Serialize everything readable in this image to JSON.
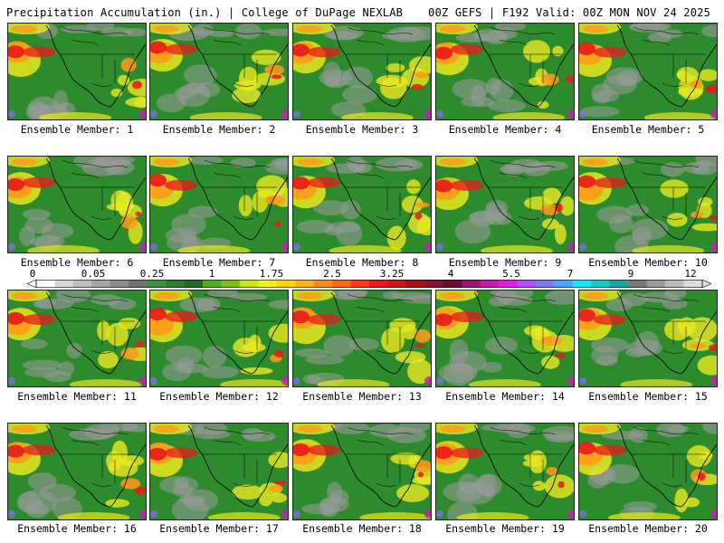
{
  "header": {
    "left": "Precipitation Accumulation (in.) | College of DuPage NEXLAB",
    "right": "00Z GEFS | F192 Valid: 00Z MON NOV 24 2025"
  },
  "legend": {
    "labels": [
      "0",
      "0.05",
      "0.25",
      "1",
      "1.75",
      "2.5",
      "3.25",
      "4",
      "5.5",
      "7",
      "9",
      "12"
    ],
    "colors": [
      "#ffffff",
      "#d9d9d9",
      "#bfbfbf",
      "#a6a6a6",
      "#8c8c8c",
      "#737373",
      "#3f8f3f",
      "#2e7d2e",
      "#1f6b1f",
      "#4caf1a",
      "#7cc21a",
      "#c8e61a",
      "#f0f020",
      "#ffd21a",
      "#ffb21a",
      "#ff8c1a",
      "#ff6a1a",
      "#ff3a1a",
      "#e61a1a",
      "#c8141a",
      "#a8101a",
      "#881030",
      "#6a0c30",
      "#9a147a",
      "#c81ab4",
      "#e61ae6",
      "#b44cff",
      "#7a7aff",
      "#4ca6ff",
      "#1ae6ff",
      "#1ac8c8",
      "#1aa6a6",
      "#7a7a7a",
      "#9a9a9a",
      "#bcbcbc",
      "#dcdcdc"
    ]
  },
  "map_colors": {
    "ocean_green": "#2d8a2d",
    "land_green": "#3a9a30",
    "gray": "#9a9a9a",
    "yellow": "#e8e820",
    "orange": "#ff9a1a",
    "red": "#e61a1a",
    "magenta": "#c81ab4",
    "purple": "#8a6aff",
    "border": "#000000"
  },
  "members": [
    {
      "label": "Ensemble Member: 1"
    },
    {
      "label": "Ensemble Member: 2"
    },
    {
      "label": "Ensemble Member: 3"
    },
    {
      "label": "Ensemble Member: 4"
    },
    {
      "label": "Ensemble Member: 5"
    },
    {
      "label": "Ensemble Member: 6"
    },
    {
      "label": "Ensemble Member: 7"
    },
    {
      "label": "Ensemble Member: 8"
    },
    {
      "label": "Ensemble Member: 9"
    },
    {
      "label": "Ensemble Member: 10"
    },
    {
      "label": "Ensemble Member: 11"
    },
    {
      "label": "Ensemble Member: 12"
    },
    {
      "label": "Ensemble Member: 13"
    },
    {
      "label": "Ensemble Member: 14"
    },
    {
      "label": "Ensemble Member: 15"
    },
    {
      "label": "Ensemble Member: 16"
    },
    {
      "label": "Ensemble Member: 17"
    },
    {
      "label": "Ensemble Member: 18"
    },
    {
      "label": "Ensemble Member: 19"
    },
    {
      "label": "Ensemble Member: 20"
    }
  ]
}
